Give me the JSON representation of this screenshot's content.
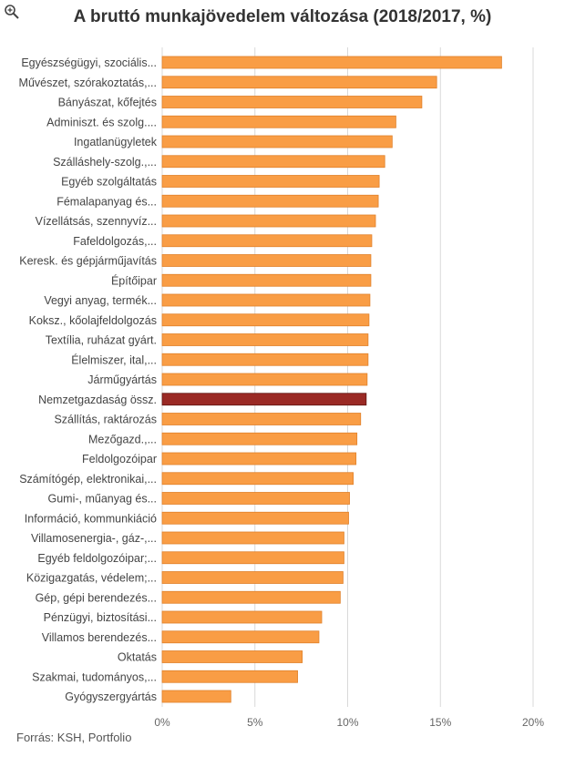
{
  "chart_data": {
    "type": "bar",
    "orientation": "horizontal",
    "title": "A bruttó munkajövedelem változása (2018/2017, %)",
    "source": "Forrás: KSH, Portfolio",
    "categories": [
      "Egyészségügyi, szociális...",
      "Művészet, szórakoztatás,...",
      "Bányászat, kőfejtés",
      "Adminiszt. és szolg....",
      "Ingatlanügyletek",
      "Szálláshely-szolg.,...",
      "Egyéb szolgáltatás",
      "Fémalapanyag és...",
      "Vízellátsás, szennyvíz...",
      "Fafeldolgozás,...",
      "Keresk. és gépjárműjavítás",
      "Építőipar",
      "Vegyi anyag, termék...",
      "Koksz., kőolajfeldolgozás",
      "Textília, ruházat gyárt.",
      "Élelmiszer, ital,...",
      "Járműgyártás",
      "Nemzetgazdaság össz.",
      "Szállítás, raktározás",
      "Mezőgazd.,...",
      "Feldolgozóipar",
      "Számítógép, elektronikai,...",
      "Gumi-, műanyag és...",
      "Információ, kommunkiáció",
      "Villamosenergia-, gáz-,...",
      "Egyéb feldolgozóipar;...",
      "Közigazgatás, védelem;...",
      "Gép, gépi berendezés...",
      "Pénzügyi, biztosítási...",
      "Villamos berendezés...",
      "Oktatás",
      "Szakmai, tudományos,...",
      "Gyógyszergyártás"
    ],
    "values": [
      18.3,
      14.8,
      14.0,
      12.6,
      12.4,
      12.0,
      11.7,
      11.65,
      11.5,
      11.3,
      11.25,
      11.25,
      11.2,
      11.15,
      11.1,
      11.1,
      11.05,
      11.0,
      10.7,
      10.5,
      10.45,
      10.3,
      10.1,
      10.05,
      9.8,
      9.8,
      9.75,
      9.6,
      8.6,
      8.45,
      7.55,
      7.3,
      3.7
    ],
    "highlight_index": 17,
    "xlim": [
      0,
      20
    ],
    "xticks": [
      "0%",
      "5%",
      "10%",
      "15%",
      "20%"
    ],
    "grid": true,
    "colors": {
      "bar": "#F99D45",
      "bar_stroke": "#E0812A",
      "highlight": "#9A2A25",
      "highlight_stroke": "#5E1512",
      "grid": "#D9D9D9"
    }
  }
}
